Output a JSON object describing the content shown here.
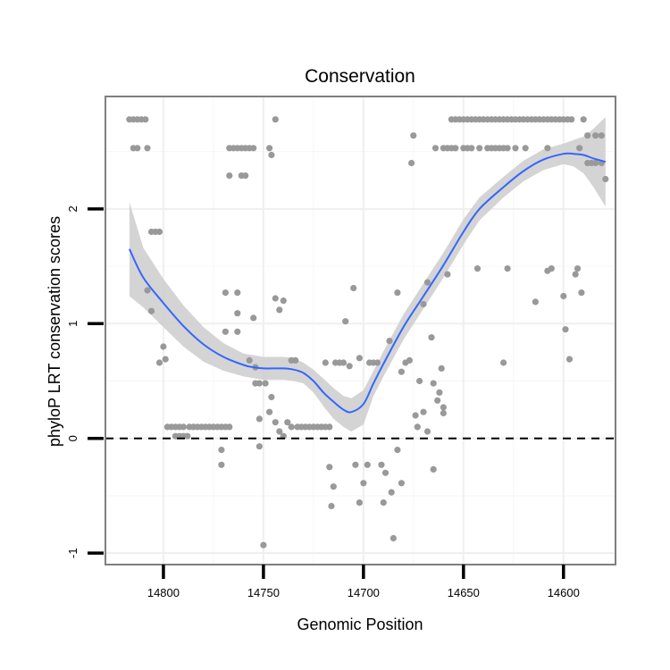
{
  "chart_data": {
    "type": "scatter",
    "title": "Conservation",
    "xlabel": "Genomic Position",
    "ylabel": "phyloP LRT conservation scores",
    "x_reversed": true,
    "xlim": [
      14829,
      14574
    ],
    "ylim": [
      -1.1,
      2.98
    ],
    "x_ticks": [
      14800,
      14750,
      14700,
      14650,
      14600
    ],
    "y_ticks": [
      -1,
      0,
      1,
      2
    ],
    "grid": true,
    "reference_line": {
      "y": 0,
      "style": "dashed",
      "color": "#000000"
    },
    "point_color": "#999999",
    "smooth_color": "#3366ff",
    "ribbon_color": "#cccccc",
    "background_color": "#ffffff",
    "points": [
      [
        14817,
        2.78
      ],
      [
        14815,
        2.78
      ],
      [
        14813,
        2.78
      ],
      [
        14811,
        2.78
      ],
      [
        14809,
        2.78
      ],
      [
        14815,
        2.53
      ],
      [
        14813,
        2.53
      ],
      [
        14808,
        2.53
      ],
      [
        14806,
        1.8
      ],
      [
        14804,
        1.8
      ],
      [
        14802,
        1.8
      ],
      [
        14808,
        1.29
      ],
      [
        14806,
        1.11
      ],
      [
        14802,
        0.66
      ],
      [
        14800,
        0.8
      ],
      [
        14799,
        0.69
      ],
      [
        14798,
        0.1
      ],
      [
        14796,
        0.1
      ],
      [
        14794,
        0.1
      ],
      [
        14792,
        0.1
      ],
      [
        14794,
        0.02
      ],
      [
        14792,
        0.02
      ],
      [
        14790,
        0.02
      ],
      [
        14788,
        0.02
      ],
      [
        14790,
        0.1
      ],
      [
        14787,
        0.1
      ],
      [
        14785,
        0.1
      ],
      [
        14783,
        0.1
      ],
      [
        14781,
        0.1
      ],
      [
        14779,
        0.1
      ],
      [
        14777,
        0.1
      ],
      [
        14775,
        0.1
      ],
      [
        14773,
        0.1
      ],
      [
        14771,
        0.1
      ],
      [
        14769,
        0.1
      ],
      [
        14767,
        0.1
      ],
      [
        14771,
        -0.1
      ],
      [
        14771,
        -0.23
      ],
      [
        14769,
        0.93
      ],
      [
        14769,
        1.27
      ],
      [
        14767,
        2.29
      ],
      [
        14767,
        2.53
      ],
      [
        14765,
        2.53
      ],
      [
        14763,
        2.53
      ],
      [
        14761,
        2.53
      ],
      [
        14759,
        2.53
      ],
      [
        14757,
        2.53
      ],
      [
        14755,
        2.53
      ],
      [
        14761,
        2.29
      ],
      [
        14759,
        2.29
      ],
      [
        14763,
        1.09
      ],
      [
        14763,
        1.27
      ],
      [
        14763,
        0.93
      ],
      [
        14757,
        0.68
      ],
      [
        14755,
        1.05
      ],
      [
        14754,
        0.62
      ],
      [
        14754,
        0.48
      ],
      [
        14752,
        0.48
      ],
      [
        14752,
        -0.07
      ],
      [
        14752,
        0.17
      ],
      [
        14750,
        -0.93
      ],
      [
        14749,
        0.48
      ],
      [
        14747,
        0.23
      ],
      [
        14746,
        0.36
      ],
      [
        14747,
        2.53
      ],
      [
        14746,
        2.47
      ],
      [
        14744,
        2.78
      ],
      [
        14744,
        1.22
      ],
      [
        14742,
        1.12
      ],
      [
        14740,
        1.2
      ],
      [
        14744,
        0.14
      ],
      [
        14742,
        0.06
      ],
      [
        14740,
        0.02
      ],
      [
        14738,
        0.14
      ],
      [
        14736,
        0.68
      ],
      [
        14734,
        0.68
      ],
      [
        14736,
        0.1
      ],
      [
        14733,
        0.1
      ],
      [
        14731,
        0.1
      ],
      [
        14729,
        0.1
      ],
      [
        14727,
        0.1
      ],
      [
        14725,
        0.1
      ],
      [
        14723,
        0.1
      ],
      [
        14721,
        0.1
      ],
      [
        14719,
        0.1
      ],
      [
        14717,
        0.1
      ],
      [
        14719,
        0.66
      ],
      [
        14717,
        -0.25
      ],
      [
        14716,
        -0.59
      ],
      [
        14715,
        -0.42
      ],
      [
        14714,
        0.66
      ],
      [
        14712,
        0.66
      ],
      [
        14710,
        0.66
      ],
      [
        14709,
        1.02
      ],
      [
        14707,
        0.63
      ],
      [
        14705,
        1.31
      ],
      [
        14704,
        -0.23
      ],
      [
        14702,
        -0.56
      ],
      [
        14702,
        0.7
      ],
      [
        14700,
        -0.39
      ],
      [
        14698,
        -0.23
      ],
      [
        14697,
        0.66
      ],
      [
        14695,
        0.66
      ],
      [
        14693,
        0.66
      ],
      [
        14691,
        -0.23
      ],
      [
        14690,
        -0.56
      ],
      [
        14689,
        -0.3
      ],
      [
        14687,
        0.85
      ],
      [
        14686,
        -0.47
      ],
      [
        14685,
        -0.87
      ],
      [
        14683,
        1.27
      ],
      [
        14683,
        -0.1
      ],
      [
        14681,
        0.58
      ],
      [
        14681,
        -0.39
      ],
      [
        14679,
        0.66
      ],
      [
        14677,
        0.68
      ],
      [
        14676,
        2.4
      ],
      [
        14675,
        2.64
      ],
      [
        14674,
        0.2
      ],
      [
        14672,
        0.5
      ],
      [
        14673,
        0.1
      ],
      [
        14670,
        1.17
      ],
      [
        14670,
        0.23
      ],
      [
        14668,
        0.06
      ],
      [
        14668,
        1.36
      ],
      [
        14666,
        0.88
      ],
      [
        14665,
        0.48
      ],
      [
        14665,
        -0.27
      ],
      [
        14663,
        0.33
      ],
      [
        14661,
        0.61
      ],
      [
        14660,
        0.22
      ],
      [
        14660,
        0.27
      ],
      [
        14658,
        1.43
      ],
      [
        14662,
        0.4
      ],
      [
        14656,
        2.78
      ],
      [
        14654,
        2.78
      ],
      [
        14652,
        2.78
      ],
      [
        14650,
        2.78
      ],
      [
        14648,
        2.78
      ],
      [
        14646,
        2.78
      ],
      [
        14644,
        2.78
      ],
      [
        14642,
        2.78
      ],
      [
        14640,
        2.78
      ],
      [
        14638,
        2.78
      ],
      [
        14636,
        2.78
      ],
      [
        14634,
        2.78
      ],
      [
        14632,
        2.78
      ],
      [
        14630,
        2.78
      ],
      [
        14628,
        2.78
      ],
      [
        14626,
        2.78
      ],
      [
        14624,
        2.78
      ],
      [
        14622,
        2.78
      ],
      [
        14620,
        2.78
      ],
      [
        14618,
        2.78
      ],
      [
        14616,
        2.78
      ],
      [
        14614,
        2.78
      ],
      [
        14612,
        2.78
      ],
      [
        14610,
        2.78
      ],
      [
        14608,
        2.78
      ],
      [
        14606,
        2.78
      ],
      [
        14604,
        2.78
      ],
      [
        14602,
        2.78
      ],
      [
        14600,
        2.78
      ],
      [
        14598,
        2.78
      ],
      [
        14596,
        2.78
      ],
      [
        14590,
        2.78
      ],
      [
        14664,
        2.53
      ],
      [
        14660,
        2.53
      ],
      [
        14658,
        2.53
      ],
      [
        14656,
        2.53
      ],
      [
        14654,
        2.53
      ],
      [
        14650,
        2.53
      ],
      [
        14648,
        2.53
      ],
      [
        14646,
        2.53
      ],
      [
        14642,
        2.53
      ],
      [
        14638,
        2.53
      ],
      [
        14636,
        2.53
      ],
      [
        14634,
        2.53
      ],
      [
        14632,
        2.53
      ],
      [
        14630,
        2.53
      ],
      [
        14628,
        2.53
      ],
      [
        14624,
        2.53
      ],
      [
        14619,
        2.53
      ],
      [
        14608,
        2.53
      ],
      [
        14592,
        2.53
      ],
      [
        14588,
        2.4
      ],
      [
        14586,
        2.4
      ],
      [
        14584,
        2.4
      ],
      [
        14581,
        2.4
      ],
      [
        14588,
        2.64
      ],
      [
        14584,
        2.64
      ],
      [
        14581,
        2.64
      ],
      [
        14579,
        2.26
      ],
      [
        14643,
        1.48
      ],
      [
        14628,
        1.48
      ],
      [
        14630,
        0.66
      ],
      [
        14614,
        1.19
      ],
      [
        14608,
        1.46
      ],
      [
        14606,
        1.48
      ],
      [
        14600,
        1.24
      ],
      [
        14599,
        0.95
      ],
      [
        14597,
        0.69
      ],
      [
        14594,
        1.43
      ],
      [
        14593,
        1.48
      ],
      [
        14591,
        1.27
      ]
    ],
    "smooth_curve": [
      [
        14817,
        1.65
      ],
      [
        14810,
        1.4
      ],
      [
        14800,
        1.18
      ],
      [
        14790,
        0.98
      ],
      [
        14780,
        0.82
      ],
      [
        14770,
        0.71
      ],
      [
        14760,
        0.64
      ],
      [
        14755,
        0.62
      ],
      [
        14750,
        0.61
      ],
      [
        14740,
        0.61
      ],
      [
        14735,
        0.6
      ],
      [
        14730,
        0.57
      ],
      [
        14725,
        0.5
      ],
      [
        14720,
        0.4
      ],
      [
        14715,
        0.32
      ],
      [
        14710,
        0.25
      ],
      [
        14706,
        0.23
      ],
      [
        14700,
        0.3
      ],
      [
        14695,
        0.48
      ],
      [
        14690,
        0.65
      ],
      [
        14680,
        0.97
      ],
      [
        14670,
        1.24
      ],
      [
        14660,
        1.51
      ],
      [
        14650,
        1.8
      ],
      [
        14642,
        2.0
      ],
      [
        14630,
        2.19
      ],
      [
        14620,
        2.33
      ],
      [
        14610,
        2.43
      ],
      [
        14600,
        2.48
      ],
      [
        14595,
        2.48
      ],
      [
        14590,
        2.47
      ],
      [
        14585,
        2.44
      ],
      [
        14579,
        2.41
      ]
    ],
    "ribbon_upper": [
      [
        14817,
        2.06
      ],
      [
        14810,
        1.66
      ],
      [
        14800,
        1.39
      ],
      [
        14790,
        1.16
      ],
      [
        14780,
        0.97
      ],
      [
        14770,
        0.83
      ],
      [
        14760,
        0.74
      ],
      [
        14750,
        0.71
      ],
      [
        14740,
        0.71
      ],
      [
        14735,
        0.7
      ],
      [
        14730,
        0.66
      ],
      [
        14725,
        0.6
      ],
      [
        14720,
        0.52
      ],
      [
        14715,
        0.44
      ],
      [
        14710,
        0.37
      ],
      [
        14706,
        0.35
      ],
      [
        14700,
        0.42
      ],
      [
        14695,
        0.59
      ],
      [
        14690,
        0.76
      ],
      [
        14680,
        1.08
      ],
      [
        14670,
        1.35
      ],
      [
        14660,
        1.62
      ],
      [
        14650,
        1.91
      ],
      [
        14642,
        2.1
      ],
      [
        14630,
        2.28
      ],
      [
        14620,
        2.42
      ],
      [
        14610,
        2.52
      ],
      [
        14600,
        2.57
      ],
      [
        14595,
        2.6
      ],
      [
        14590,
        2.63
      ],
      [
        14585,
        2.7
      ],
      [
        14579,
        2.8
      ]
    ],
    "ribbon_lower": [
      [
        14817,
        1.24
      ],
      [
        14810,
        1.14
      ],
      [
        14800,
        0.97
      ],
      [
        14790,
        0.8
      ],
      [
        14780,
        0.67
      ],
      [
        14770,
        0.59
      ],
      [
        14760,
        0.54
      ],
      [
        14750,
        0.51
      ],
      [
        14740,
        0.51
      ],
      [
        14735,
        0.5
      ],
      [
        14730,
        0.48
      ],
      [
        14725,
        0.4
      ],
      [
        14720,
        0.28
      ],
      [
        14715,
        0.17
      ],
      [
        14710,
        0.1
      ],
      [
        14706,
        0.06
      ],
      [
        14700,
        0.12
      ],
      [
        14695,
        0.37
      ],
      [
        14690,
        0.54
      ],
      [
        14680,
        0.86
      ],
      [
        14670,
        1.13
      ],
      [
        14660,
        1.4
      ],
      [
        14650,
        1.69
      ],
      [
        14642,
        1.9
      ],
      [
        14630,
        2.1
      ],
      [
        14620,
        2.24
      ],
      [
        14610,
        2.34
      ],
      [
        14600,
        2.39
      ],
      [
        14595,
        2.37
      ],
      [
        14590,
        2.31
      ],
      [
        14585,
        2.19
      ],
      [
        14579,
        2.02
      ]
    ]
  }
}
